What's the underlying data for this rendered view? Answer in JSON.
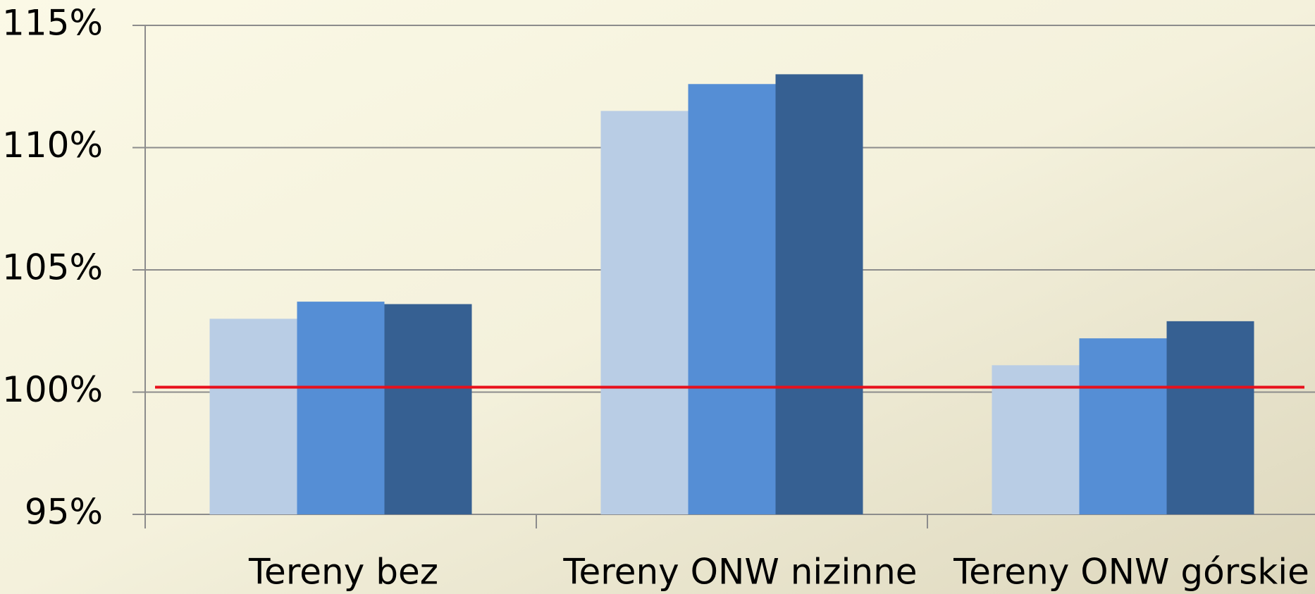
{
  "chart_data": {
    "type": "bar",
    "categories": [
      "Tereny bez",
      "Tereny ONW nizinne",
      "Tereny ONW górskie"
    ],
    "series": [
      {
        "color": "#b9cde5",
        "values": [
          103.0,
          111.5,
          101.1
        ]
      },
      {
        "color": "#558ed5",
        "values": [
          103.7,
          112.6,
          102.2
        ]
      },
      {
        "color": "#366092",
        "values": [
          103.6,
          113.0,
          102.9
        ]
      }
    ],
    "ylim": [
      95,
      115
    ],
    "yticks": [
      {
        "value": 95,
        "label": "95%"
      },
      {
        "value": 100,
        "label": "100%"
      },
      {
        "value": 105,
        "label": "105%"
      },
      {
        "value": 110,
        "label": "110%"
      },
      {
        "value": 115,
        "label": "115%"
      }
    ],
    "grid": true,
    "reference_line": {
      "value": 100.2,
      "color": "#e8101c"
    }
  }
}
